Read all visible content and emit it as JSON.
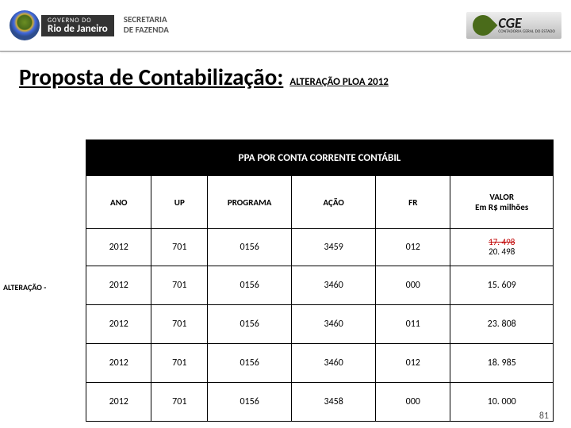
{
  "header": {
    "gov_small": "GOVERNO DO",
    "gov_big": "Rio de Janeiro",
    "sec_line1": "SECRETARIA",
    "sec_line2": "DE FAZENDA",
    "cge_big": "CGE",
    "cge_small": "CONTADORIA GERAL DO ESTADO"
  },
  "title": {
    "main": "Proposta de Contabilização:",
    "sub": "ALTERAÇÃO PLOA 2012"
  },
  "side_label": "ALTERAÇÃO -",
  "table": {
    "caption": "PPA POR CONTA CORRENTE CONTÁBIL",
    "columns": {
      "ano": "ANO",
      "up": "UP",
      "programa": "PROGRAMA",
      "acao": "AÇÃO",
      "fr": "FR",
      "valor_l1": "VALOR",
      "valor_l2": "Em R$ milhões"
    },
    "rows": [
      {
        "ano": "2012",
        "up": "701",
        "programa": "0156",
        "acao": "3459",
        "fr": "012",
        "valor_strike": "17. 498",
        "valor_new": "20. 498"
      },
      {
        "ano": "2012",
        "up": "701",
        "programa": "0156",
        "acao": "3460",
        "fr": "000",
        "valor": "15. 609"
      },
      {
        "ano": "2012",
        "up": "701",
        "programa": "0156",
        "acao": "3460",
        "fr": "011",
        "valor": "23. 808"
      },
      {
        "ano": "2012",
        "up": "701",
        "programa": "0156",
        "acao": "3460",
        "fr": "012",
        "valor": "18. 985"
      },
      {
        "ano": "2012",
        "up": "701",
        "programa": "0156",
        "acao": "3458",
        "fr": "000",
        "valor": "10. 000"
      }
    ]
  },
  "page_number": "81",
  "colors": {
    "title_text": "#000000",
    "table_header_bg": "#000000",
    "table_header_fg": "#ffffff",
    "strike_color": "#c00000",
    "border": "#000000",
    "page_bg": "#ffffff"
  }
}
